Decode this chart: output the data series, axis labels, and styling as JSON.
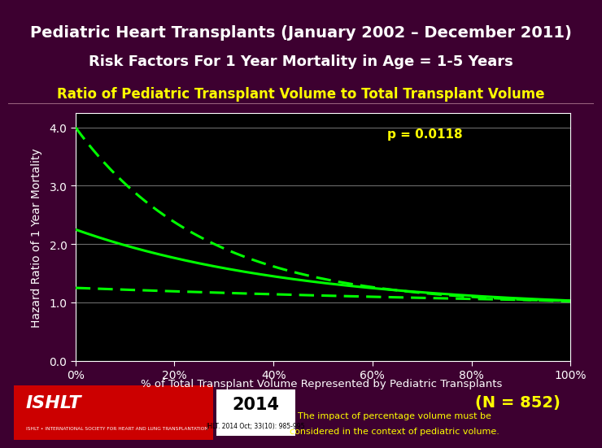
{
  "title_line1_bold": "Pediatric Heart Transplants",
  "title_line1_normal": " (January 2002 – December 2011)",
  "title_line2": "Risk Factors For 1 Year Mortality in Age = 1-5 Years",
  "title_line3": "Ratio of Pediatric Transplant Volume to Total Transplant Volume",
  "xlabel": "% of Total Transplant Volume Represented by Pediatric Transplants",
  "ylabel": "Hazard Ratio of 1 Year Mortality",
  "p_value": "p = 0.0118",
  "n_label": "(N = 852)",
  "footnote1": "The impact of percentage volume must be",
  "footnote2": "considered in the context of pediatric volume.",
  "journal": "JHLT. 2014 Oct; 33(10): 985-995",
  "year": "2014",
  "x_ticks": [
    "0%",
    "20%",
    "40%",
    "60%",
    "80%",
    "100%"
  ],
  "y_ticks": [
    0.0,
    1.0,
    2.0,
    3.0,
    4.0
  ],
  "ylim": [
    0.0,
    4.25
  ],
  "xlim": [
    0,
    100
  ],
  "bg_color": "#3d0030",
  "header_top_color": "#c8b8c8",
  "plot_bg_color": "#000000",
  "line_color": "#00ff00",
  "title_color": "#ffffff",
  "subtitle_color": "#ffff00",
  "p_value_color": "#ffff00",
  "n_label_color": "#ffff00",
  "footnote_color": "#ffff00",
  "axis_label_color": "#ffffff",
  "tick_color": "#ffffff",
  "grid_color": "#888888"
}
